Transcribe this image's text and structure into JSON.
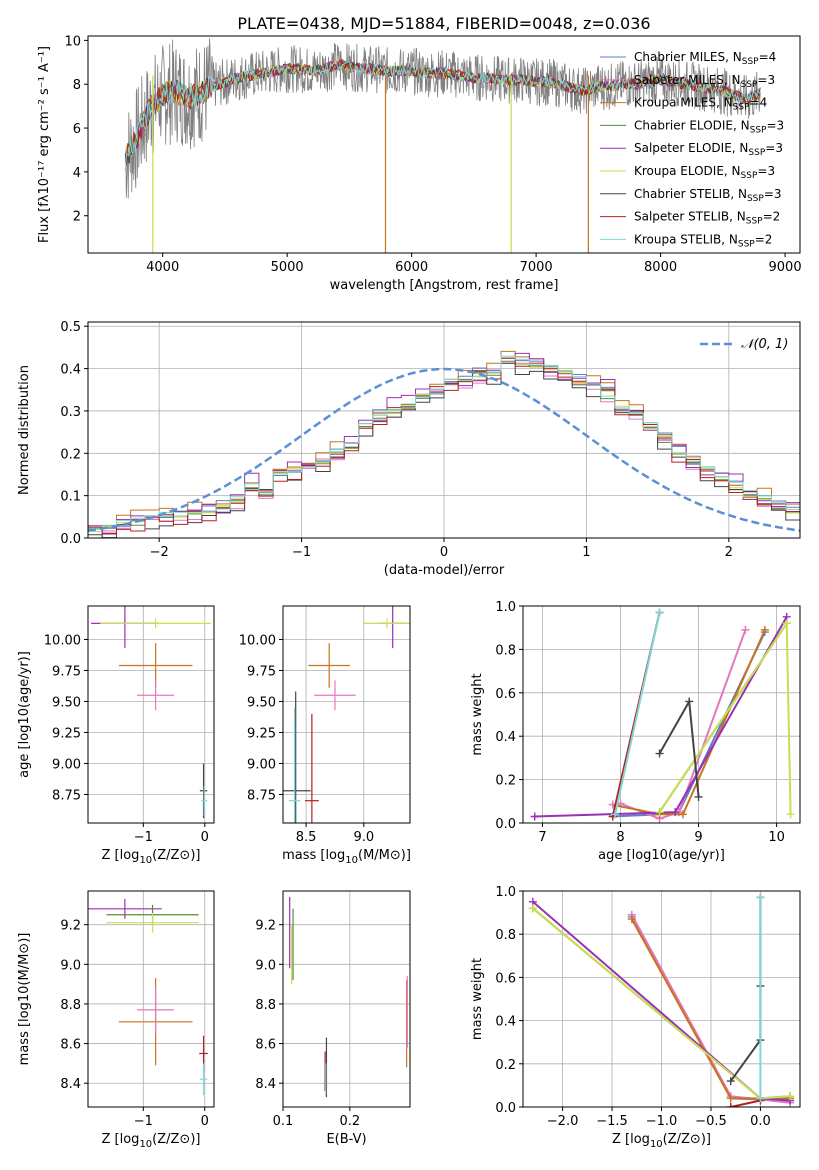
{
  "figure_title": "PLATE=0438, MJD=51884, FIBERID=0048, z=0.036",
  "palette": [
    "#5b7fc4",
    "#e377c2",
    "#c8741c",
    "#5a8a3c",
    "#9b2fb5",
    "#c9df4f",
    "#444444",
    "#b22222",
    "#7fd6d6"
  ],
  "chart_data": [
    {
      "id": "spectrum",
      "type": "line",
      "xlabel": "wavelength [Angstrom, rest frame]",
      "ylabel": "Flux [fλ10⁻¹⁷ erg cm⁻² s⁻¹ A⁻¹]",
      "xlim": [
        3400,
        9120
      ],
      "ylim": [
        0.3,
        10.2
      ],
      "xticks": [
        4000,
        5000,
        6000,
        7000,
        8000,
        9000
      ],
      "yticks": [
        2,
        4,
        6,
        8,
        10
      ],
      "legend_position": "top-right",
      "data_color": "#808080",
      "x": [
        3700,
        3800,
        3900,
        4000,
        4100,
        4200,
        4300,
        4400,
        4500,
        4600,
        4700,
        4800,
        4900,
        5000,
        5100,
        5200,
        5300,
        5400,
        5500,
        5600,
        5700,
        5800,
        5900,
        6000,
        6100,
        6200,
        6300,
        6400,
        6500,
        6600,
        6700,
        6800,
        6900,
        7000,
        7100,
        7200,
        7300,
        7400,
        7500,
        7600,
        7700,
        7800,
        7900,
        8000,
        8100,
        8200,
        8300,
        8400,
        8500,
        8600,
        8700,
        8800
      ],
      "model_flux": [
        4.6,
        5.6,
        6.9,
        7.5,
        7.7,
        7.4,
        7.6,
        7.9,
        8.1,
        8.3,
        8.4,
        8.5,
        8.6,
        8.7,
        8.7,
        8.6,
        8.7,
        8.9,
        8.8,
        8.7,
        8.7,
        8.6,
        8.6,
        8.6,
        8.5,
        8.5,
        8.5,
        8.4,
        8.3,
        8.3,
        8.2,
        8.2,
        8.2,
        8.1,
        8.1,
        8.0,
        7.8,
        7.7,
        7.9,
        7.9,
        8.0,
        8.0,
        8.1,
        8.2,
        8.1,
        8.0,
        7.9,
        7.8,
        7.7,
        7.5,
        7.3,
        7.6
      ],
      "series": [
        {
          "name": "Chabrier MILES, N$_{SSP}$=4",
          "label_main": "Chabrier MILES, N",
          "label_sub": "SSP",
          "label_tail": "=4",
          "color": "#5b7fc4"
        },
        {
          "name": "Salpeter MILES, N$_{SSP}$=3",
          "label_main": "Salpeter MILES, N",
          "label_sub": "SSP",
          "label_tail": "=3",
          "color": "#e377c2"
        },
        {
          "name": "Kroupa MILES, N$_{SSP}$=4",
          "label_main": "Kroupa MILES, N",
          "label_sub": "SSP",
          "label_tail": "=4",
          "color": "#c8741c"
        },
        {
          "name": "Chabrier ELODIE, N$_{SSP}$=3",
          "label_main": "Chabrier ELODIE, N",
          "label_sub": "SSP",
          "label_tail": "=3",
          "color": "#5a8a3c"
        },
        {
          "name": "Salpeter ELODIE, N$_{SSP}$=3",
          "label_main": "Salpeter ELODIE, N",
          "label_sub": "SSP",
          "label_tail": "=3",
          "color": "#9b2fb5"
        },
        {
          "name": "Kroupa ELODIE, N$_{SSP}$=3",
          "label_main": "Kroupa ELODIE, N",
          "label_sub": "SSP",
          "label_tail": "=3",
          "color": "#c9df4f"
        },
        {
          "name": "Chabrier STELIB, N$_{SSP}$=3",
          "label_main": "Chabrier STELIB, N",
          "label_sub": "SSP",
          "label_tail": "=3",
          "color": "#444444"
        },
        {
          "name": "Salpeter STELIB, N$_{SSP}$=2",
          "label_main": "Salpeter STELIB, N",
          "label_sub": "SSP",
          "label_tail": "=2",
          "color": "#b22222"
        },
        {
          "name": "Kroupa STELIB, N$_{SSP}$=2",
          "label_main": "Kroupa STELIB, N",
          "label_sub": "SSP",
          "label_tail": "=2",
          "color": "#7fd6d6"
        }
      ],
      "dropouts": [
        {
          "x": 3920,
          "y": 0.3,
          "color": "#c9df4f"
        },
        {
          "x": 5790,
          "y": 0.3,
          "color": "#c8741c"
        },
        {
          "x": 6800,
          "y": 0.3,
          "color": "#c9df4f"
        },
        {
          "x": 7420,
          "y": 0.3,
          "color": "#c8741c"
        }
      ]
    },
    {
      "id": "residuals",
      "type": "step",
      "xlabel": "(data-model)/error",
      "ylabel": "Normed distribution",
      "xlim": [
        -2.5,
        2.5
      ],
      "ylim": [
        0,
        0.51
      ],
      "xticks": [
        -2,
        -1,
        0,
        1,
        2
      ],
      "yticks": [
        0.0,
        0.1,
        0.2,
        0.3,
        0.4,
        0.5
      ],
      "grid": true,
      "bin_edges_start": -2.5,
      "bin_width": 0.1,
      "histogram": [
        0.018,
        0.022,
        0.03,
        0.038,
        0.048,
        0.055,
        0.052,
        0.057,
        0.062,
        0.072,
        0.085,
        0.12,
        0.11,
        0.15,
        0.16,
        0.17,
        0.18,
        0.2,
        0.215,
        0.26,
        0.29,
        0.3,
        0.31,
        0.34,
        0.35,
        0.37,
        0.37,
        0.385,
        0.39,
        0.42,
        0.41,
        0.405,
        0.4,
        0.39,
        0.37,
        0.36,
        0.34,
        0.31,
        0.29,
        0.26,
        0.235,
        0.2,
        0.18,
        0.16,
        0.145,
        0.12,
        0.1,
        0.09,
        0.075,
        0.06,
        0.05,
        0.045,
        0.038,
        0.03,
        0.025,
        0.02
      ],
      "series_offsets": [
        0.012,
        -0.014,
        0.02,
        -0.008,
        0.025,
        0.005,
        -0.02,
        -0.016,
        0.009
      ],
      "reference": {
        "name": "𝒩(0, 1)",
        "color": "#5b8fd6",
        "mean": 0,
        "sigma": 1
      },
      "legend_position": "top-right"
    },
    {
      "id": "age_vs_Z",
      "type": "errorbar",
      "xlabel_main": "Z [log",
      "xlabel_sub": "10",
      "xlabel_tail": "(Z/Z⊙)]",
      "ylabel": "age  [log10(age/yr)]",
      "xlim": [
        -1.9,
        0.15
      ],
      "ylim": [
        8.52,
        10.27
      ],
      "xticks": [
        -1,
        0
      ],
      "yticks": [
        8.75,
        9.0,
        9.25,
        9.5,
        9.75,
        10.0
      ],
      "points": [
        {
          "x": -0.8,
          "y": 9.79,
          "xerr": 0.6,
          "yerr": 0.18,
          "color": "#c8741c"
        },
        {
          "x": -1.3,
          "y": 10.13,
          "xerr": 0.55,
          "yerr": 0.2,
          "color": "#9b2fb5"
        },
        {
          "x": -0.8,
          "y": 9.55,
          "xerr": 0.3,
          "yerr": 0.12,
          "color": "#e377c2"
        },
        {
          "x": -0.02,
          "y": 8.78,
          "xerr": 0.06,
          "yerr": 0.22,
          "color": "#444444"
        },
        {
          "x": -0.01,
          "y": 8.7,
          "xerr": 0.05,
          "yerr": 0.12,
          "color": "#7fd6d6"
        },
        {
          "x": -0.8,
          "y": 10.13,
          "xerr": 0.9,
          "yerr": 0.04,
          "color": "#c9df4f"
        }
      ]
    },
    {
      "id": "age_vs_mass",
      "type": "errorbar",
      "xlabel_main": "mass [log",
      "xlabel_sub": "10",
      "xlabel_tail": "(M/M⊙)]",
      "xlim": [
        8.3,
        9.4
      ],
      "ylim": [
        8.52,
        10.27
      ],
      "xticks": [
        8.5,
        9.0
      ],
      "yticks": [
        8.75,
        9.0,
        9.25,
        9.5,
        9.75,
        10.0
      ],
      "points": [
        {
          "x": 8.7,
          "y": 9.79,
          "xerr": 0.18,
          "yerr": 0.18,
          "color": "#c8741c"
        },
        {
          "x": 9.25,
          "y": 10.13,
          "xerr": 0.12,
          "yerr": 0.2,
          "color": "#9b2fb5"
        },
        {
          "x": 8.75,
          "y": 9.55,
          "xerr": 0.18,
          "yerr": 0.12,
          "color": "#e377c2"
        },
        {
          "x": 8.41,
          "y": 8.78,
          "xerr": 0.13,
          "yerr": 0.8,
          "color": "#444444"
        },
        {
          "x": 8.55,
          "y": 8.7,
          "xerr": 0.06,
          "yerr": 0.7,
          "color": "#b22222"
        },
        {
          "x": 8.4,
          "y": 8.7,
          "xerr": 0.05,
          "yerr": 0.75,
          "color": "#7fd6d6"
        },
        {
          "x": 9.2,
          "y": 10.13,
          "xerr": 0.2,
          "yerr": 0.04,
          "color": "#c9df4f"
        }
      ]
    },
    {
      "id": "weight_vs_age",
      "type": "line",
      "xlabel": "age  [log10(age/yr)]",
      "ylabel": "mass weight",
      "xlim": [
        6.75,
        10.3
      ],
      "ylim": [
        0,
        1.0
      ],
      "xticks": [
        7,
        8,
        9,
        10
      ],
      "yticks": [
        0.0,
        0.2,
        0.4,
        0.6,
        0.8,
        1.0
      ],
      "grid": true,
      "series": [
        {
          "color": "#5b7fc4",
          "x": [
            7.9,
            8.5,
            8.75,
            9.85
          ],
          "y": [
            0.03,
            0.04,
            0.05,
            0.88
          ]
        },
        {
          "color": "#e377c2",
          "x": [
            7.9,
            8.0,
            8.5,
            8.75,
            9.6
          ],
          "y": [
            0.085,
            0.09,
            0.02,
            0.05,
            0.89
          ]
        },
        {
          "color": "#c8741c",
          "x": [
            7.95,
            8.5,
            8.8,
            9.85
          ],
          "y": [
            0.08,
            0.04,
            0.04,
            0.89
          ]
        },
        {
          "color": "#5a8a3c",
          "x": [
            8.5,
            10.13
          ],
          "y": [
            0.05,
            0.92
          ]
        },
        {
          "color": "#9b2fb5",
          "x": [
            6.9,
            8.7,
            10.13
          ],
          "y": [
            0.03,
            0.05,
            0.95
          ]
        },
        {
          "color": "#c9df4f",
          "x": [
            8.5,
            10.13,
            10.18
          ],
          "y": [
            0.05,
            0.92,
            0.04
          ]
        },
        {
          "color": "#444444",
          "x": [
            8.5,
            8.88,
            9.0
          ],
          "y": [
            0.32,
            0.56,
            0.12
          ]
        },
        {
          "color": "#b22222",
          "x": [
            7.9,
            8.5
          ],
          "y": [
            0.03,
            0.97
          ]
        },
        {
          "color": "#7fd6d6",
          "x": [
            7.93,
            8.5
          ],
          "y": [
            0.04,
            0.97
          ]
        }
      ]
    },
    {
      "id": "mass_vs_Z",
      "type": "errorbar",
      "xlabel_main": "Z [log",
      "xlabel_sub": "10",
      "xlabel_tail": "(Z/Z⊙)]",
      "ylabel": "mass [log10(M/M⊙)]",
      "xlim": [
        -1.9,
        0.15
      ],
      "ylim": [
        8.28,
        9.37
      ],
      "xticks": [
        -1,
        0
      ],
      "yticks": [
        8.4,
        8.6,
        8.8,
        9.0,
        9.2
      ],
      "points": [
        {
          "x": -1.3,
          "y": 9.28,
          "xerr": 0.6,
          "yerr": 0.05,
          "color": "#9b2fb5"
        },
        {
          "x": -0.85,
          "y": 9.25,
          "xerr": 0.75,
          "yerr": 0.05,
          "color": "#5a8a3c"
        },
        {
          "x": -0.85,
          "y": 9.21,
          "xerr": 0.75,
          "yerr": 0.05,
          "color": "#c9df4f"
        },
        {
          "x": -0.8,
          "y": 8.71,
          "xerr": 0.6,
          "yerr": 0.22,
          "color": "#c8741c"
        },
        {
          "x": -0.8,
          "y": 8.77,
          "xerr": 0.3,
          "yerr": 0.12,
          "color": "#e377c2"
        },
        {
          "x": -0.02,
          "y": 8.55,
          "xerr": 0.07,
          "yerr": 0.09,
          "color": "#b22222"
        },
        {
          "x": -0.02,
          "y": 8.42,
          "xerr": 0.06,
          "yerr": 0.08,
          "color": "#7fd6d6"
        }
      ]
    },
    {
      "id": "mass_vs_ebv",
      "type": "errorbar",
      "xlabel": "E(B-V)",
      "xlim": [
        0.1,
        0.29
      ],
      "ylim": [
        8.28,
        9.37
      ],
      "xticks": [
        0.1,
        0.2
      ],
      "yticks": [
        8.4,
        8.6,
        8.8,
        9.0,
        9.2
      ],
      "points": [
        {
          "x": 0.11,
          "y": 9.16,
          "xerr": 0,
          "yerr": 0.18,
          "color": "#9b2fb5"
        },
        {
          "x": 0.115,
          "y": 9.1,
          "xerr": 0,
          "yerr": 0.18,
          "color": "#5a8a3c"
        },
        {
          "x": 0.113,
          "y": 9.05,
          "xerr": 0,
          "yerr": 0.15,
          "color": "#c9df4f"
        },
        {
          "x": 0.285,
          "y": 8.7,
          "xerr": 0,
          "yerr": 0.22,
          "color": "#c8741c"
        },
        {
          "x": 0.286,
          "y": 8.76,
          "xerr": 0,
          "yerr": 0.18,
          "color": "#e377c2"
        },
        {
          "x": 0.165,
          "y": 8.48,
          "xerr": 0,
          "yerr": 0.15,
          "color": "#444444"
        },
        {
          "x": 0.163,
          "y": 8.46,
          "xerr": 0,
          "yerr": 0.1,
          "color": "#b22222"
        },
        {
          "x": 0.164,
          "y": 8.42,
          "xerr": 0,
          "yerr": 0.08,
          "color": "#7fd6d6"
        }
      ]
    },
    {
      "id": "weight_vs_Z",
      "type": "line",
      "xlabel_main": "Z [log",
      "xlabel_sub": "10",
      "xlabel_tail": "(Z/Z⊙)]",
      "ylabel": "mass weight",
      "xlim": [
        -2.4,
        0.4
      ],
      "ylim": [
        0,
        1.0
      ],
      "xticks": [
        -2.0,
        -1.5,
        -1.0,
        -0.5,
        0.0
      ],
      "yticks": [
        0.0,
        0.2,
        0.4,
        0.6,
        0.8,
        1.0
      ],
      "grid": true,
      "series": [
        {
          "color": "#5b7fc4",
          "x": [
            -1.3,
            -0.3,
            0.3
          ],
          "y": [
            0.88,
            0.04,
            0.03
          ]
        },
        {
          "color": "#e377c2",
          "x": [
            -1.3,
            -0.3,
            0.3
          ],
          "y": [
            0.89,
            0.05,
            0.02
          ]
        },
        {
          "color": "#c8741c",
          "x": [
            -1.3,
            -0.3,
            0.3
          ],
          "y": [
            0.87,
            0.04,
            0.04
          ]
        },
        {
          "color": "#5a8a3c",
          "x": [
            -2.3,
            0.0,
            0.3
          ],
          "y": [
            0.92,
            0.04,
            0.05
          ]
        },
        {
          "color": "#9b2fb5",
          "x": [
            -2.3,
            0.0,
            0.3
          ],
          "y": [
            0.95,
            0.04,
            0.03
          ]
        },
        {
          "color": "#c9df4f",
          "x": [
            -2.3,
            0.0,
            0.3
          ],
          "y": [
            0.92,
            0.04,
            0.05
          ]
        },
        {
          "color": "#444444",
          "x": [
            -0.3,
            0.0,
            0.0,
            0.0
          ],
          "y": [
            0.12,
            0.31,
            0.56,
            0.97
          ]
        },
        {
          "color": "#b22222",
          "x": [
            -0.3,
            0.0
          ],
          "y": [
            0.0,
            0.03
          ]
        },
        {
          "color": "#7fd6d6",
          "x": [
            0.0,
            0.0
          ],
          "y": [
            0.04,
            0.97
          ]
        }
      ]
    }
  ]
}
